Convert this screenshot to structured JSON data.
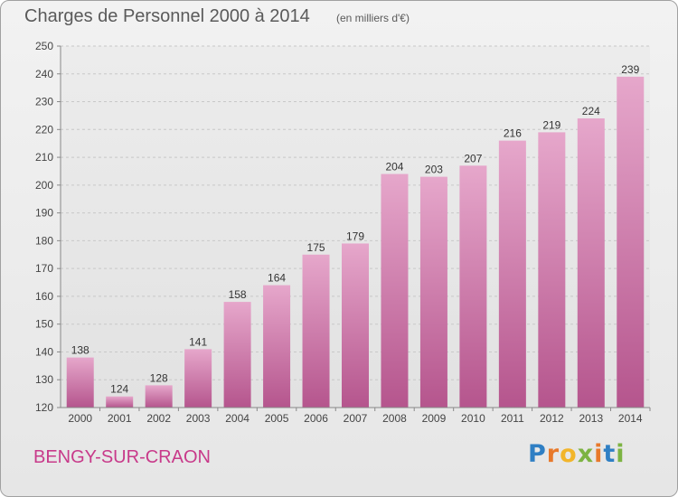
{
  "title": "Charges de Personnel 2000 à 2014",
  "subtitle": "(en milliers d'€)",
  "commune": "BENGY-SUR-CRAON",
  "logo": {
    "text": "Proxiti",
    "letters": [
      {
        "ch": "P",
        "color": "#2f7fc4"
      },
      {
        "ch": "r",
        "color": "#e8792b"
      },
      {
        "ch": "o",
        "color": "#f2b52b"
      },
      {
        "ch": "x",
        "color": "#7cb342"
      },
      {
        "ch": "i",
        "color": "#e8792b"
      },
      {
        "ch": "t",
        "color": "#2f7fc4"
      },
      {
        "ch": "i",
        "color": "#7cb342"
      }
    ]
  },
  "chart_data": {
    "type": "bar",
    "title": "Charges de Personnel 2000 à 2014",
    "subtitle": "(en milliers d'€)",
    "categories": [
      "2000",
      "2001",
      "2002",
      "2003",
      "2004",
      "2005",
      "2006",
      "2007",
      "2008",
      "2009",
      "2010",
      "2011",
      "2012",
      "2013",
      "2014"
    ],
    "values": [
      138,
      124,
      128,
      141,
      158,
      164,
      175,
      179,
      204,
      203,
      207,
      216,
      219,
      224,
      239
    ],
    "ylim": [
      120,
      250
    ],
    "yticks": [
      120,
      130,
      140,
      150,
      160,
      170,
      180,
      190,
      200,
      210,
      220,
      230,
      240,
      250
    ],
    "grid": "horizontal dashed",
    "bar_color": "#d98ab8"
  }
}
